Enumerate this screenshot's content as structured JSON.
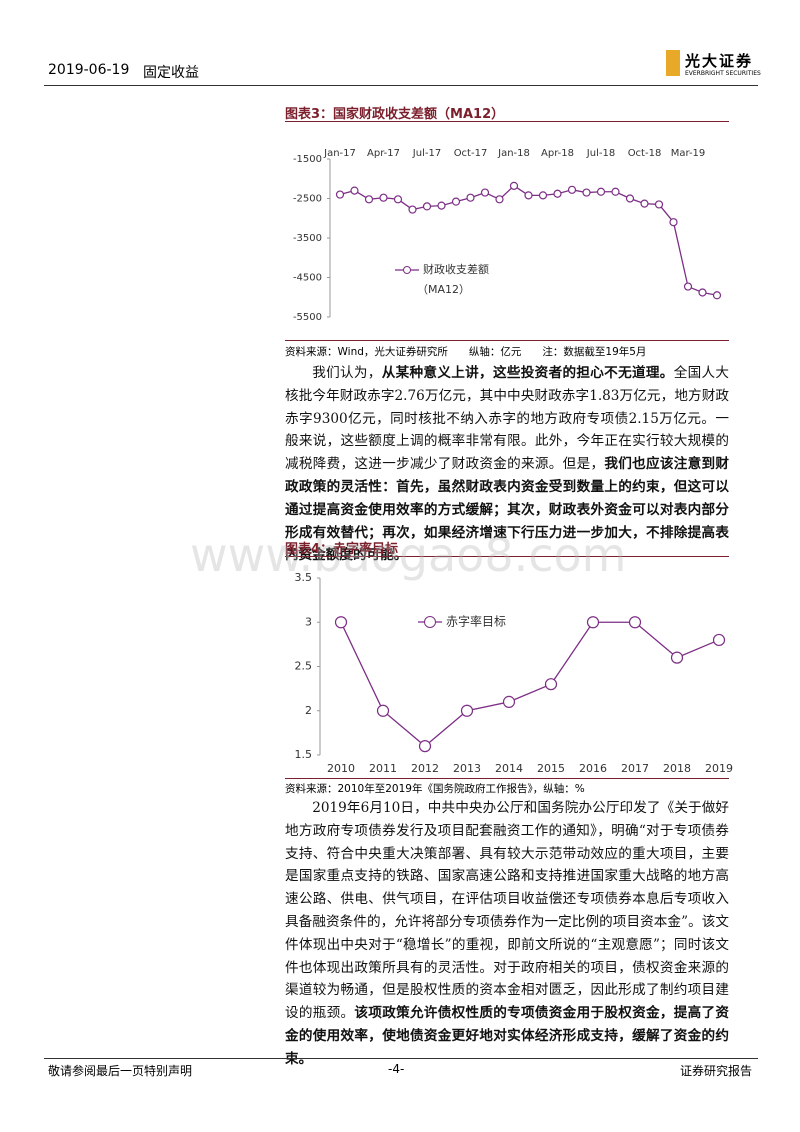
{
  "header": {
    "date": "2019-06-19",
    "section": "固定收益",
    "logo": "光大证券",
    "logo_en": "EVERBRIGHT SECURITIES"
  },
  "figures": [
    {
      "title": "图表3：国家财政收支差额（MA12）",
      "source": "资料来源：Wind，光大证券研究所　　纵轴：亿元　　注：数据截至19年5月"
    },
    {
      "title": "图表4：赤字率目标",
      "source": "资料来源：2010年至2019年《国务院政府工作报告》，纵轴：%"
    }
  ],
  "chart_data": [
    {
      "type": "line",
      "categories": [
        "Jan-17",
        null,
        null,
        "Apr-17",
        null,
        null,
        "Jul-17",
        null,
        null,
        "Oct-17",
        null,
        null,
        "Jan-18",
        null,
        null,
        "Apr-18",
        null,
        null,
        "Jul-18",
        null,
        null,
        "Oct-18",
        null,
        null,
        "Mar-19",
        null,
        null
      ],
      "series": [
        {
          "name": "财政收支差额",
          "color": "#7d2f86",
          "values": [
            -2400,
            -2300,
            -2520,
            -2480,
            -2520,
            -2780,
            -2700,
            -2680,
            -2580,
            -2480,
            -2350,
            -2520,
            -2180,
            -2420,
            -2420,
            -2380,
            -2280,
            -2350,
            -2330,
            -2330,
            -2500,
            -2630,
            -2650,
            -3100,
            -4730,
            -4880,
            -4950
          ]
        }
      ],
      "legend_note": "（MA12）",
      "ylim": [
        -5500,
        -1500
      ],
      "yticks": [
        -1500,
        -2500,
        -3500,
        -4500,
        -5500
      ],
      "x_axis_position": "top"
    },
    {
      "type": "line",
      "categories": [
        "2010",
        "2011",
        "2012",
        "2013",
        "2014",
        "2015",
        "2016",
        "2017",
        "2018",
        "2019"
      ],
      "series": [
        {
          "name": "赤字率目标",
          "color": "#7d2f86",
          "values": [
            3,
            2,
            1.6,
            2,
            2.1,
            2.3,
            3,
            3,
            2.6,
            2.8
          ]
        }
      ],
      "ylim": [
        1.5,
        3.5
      ],
      "yticks": [
        1.5,
        2,
        2.5,
        3,
        3.5
      ],
      "x_axis_position": "bottom"
    }
  ],
  "paragraphs": [
    [
      {
        "text": "我们认为，",
        "bold": false
      },
      {
        "text": "从某种意义上讲，这些投资者的担心不无道理。",
        "bold": true
      },
      {
        "text": "全国人大核批今年财政赤字2.76万亿元，其中中央财政赤字1.83万亿元，地方财政赤字9300亿元，同时核批不纳入赤字的地方政府专项债2.15万亿元。一般来说，这些额度上调的概率非常有限。此外，今年正在实行较大规模的减税降费，这进一步减少了财政资金的来源。但是，",
        "bold": false
      },
      {
        "text": "我们也应该注意到财政政策的灵活性：首先，虽然财政表内资金受到数量上的约束，但这可以通过提高资金使用效率的方式缓解；其次，财政表外资金可以对表内部分形成有效替代；再次，如果经济增速下行压力进一步加大，不排除提高表内资金额度的可能。",
        "bold": true
      }
    ],
    [
      {
        "text": "2019年6月10日，中共中央办公厅和国务院办公厅印发了《关于做好地方政府专项债券发行及项目配套融资工作的通知》，明确“对于专项债券支持、符合中央重大决策部署、具有较大示范带动效应的重大项目，主要是国家重点支持的铁路、国家高速公路和支持推进国家重大战略的地方高速公路、供电、供气项目，在评估项目收益偿还专项债券本息后专项收入具备融资条件的，允许将部分专项债券作为一定比例的项目资本金”。该文件体现出中央对于“稳增长”的重视，即前文所说的“主观意愿”；同时该文件也体现出政策所具有的灵活性。对于政府相关的项目，债权资金来源的渠道较为畅通，但是股权性质的资本金相对匮乏，因此形成了制约项目建设的瓶颈。",
        "bold": false
      },
      {
        "text": "该项政策允许债权性质的专项债资金用于股权资金，提高了资金的使用效率，使地债资金更好地对实体经济形成支持，缓解了资金的约束。",
        "bold": true
      }
    ]
  ],
  "watermark": "www.baogao8.com",
  "footer": {
    "left": "敬请参阅最后一页特别声明",
    "center": "-4-",
    "right": "证券研究报告"
  }
}
